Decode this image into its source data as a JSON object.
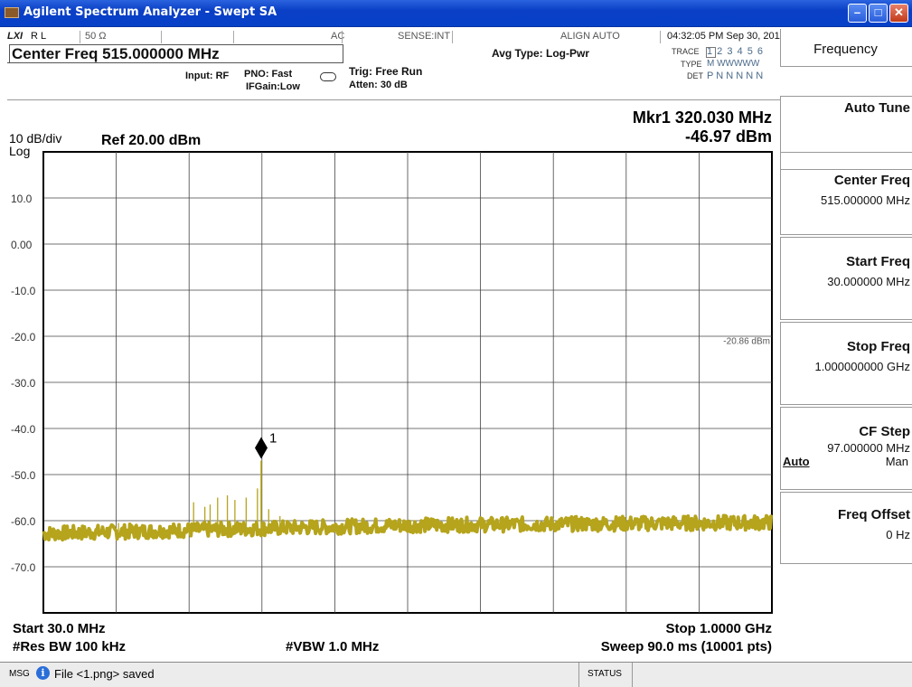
{
  "window": {
    "title": "Agilent Spectrum Analyzer - Swept SA",
    "min_label": "–",
    "max_label": "□",
    "close_label": "✕"
  },
  "header": {
    "lxi": "LXI",
    "rl": "R L",
    "impedance": "50 Ω",
    "coupling": "AC",
    "sense": "SENSE:INT",
    "align": "ALIGN AUTO",
    "timestamp": "04:32:05 PM Sep 30, 2011",
    "center_freq": "Center Freq  515.000000 MHz",
    "input": "Input: RF",
    "pno": "PNO: Fast",
    "ifgain": "IFGain:Low",
    "trig": "Trig: Free Run",
    "atten": "Atten: 30 dB",
    "avg_type": "Avg Type: Log-Pwr",
    "trace_label": "TRACE",
    "trace_vals": "1 2 3 4 5 6",
    "type_label": "TYPE",
    "type_vals": "M WWWWW",
    "det_label": "DET",
    "det_vals": "P N N N N N"
  },
  "plot": {
    "scale": "10 dB/div",
    "log": "Log",
    "ref": "Ref 20.00 dBm",
    "marker_freq": "Mkr1 320.030 MHz",
    "marker_amp": "-46.97 dBm",
    "y_ticks": [
      "10.0",
      "0.00",
      "-10.0",
      "-20.0",
      "-30.0",
      "-40.0",
      "-50.0",
      "-60.0",
      "-70.0"
    ],
    "display_line": "-20.86 dBm",
    "marker_id": "1",
    "start": "Start 30.0 MHz",
    "stop": "Stop 1.0000 GHz",
    "rbw": "#Res BW 100 kHz",
    "vbw": "#VBW 1.0 MHz",
    "sweep": "Sweep  90.0 ms (10001 pts)",
    "trace_color": "#b5a41c"
  },
  "chart_data": {
    "type": "line",
    "title": "",
    "xlabel": "",
    "ylabel": "",
    "xlim": [
      30.0,
      1000.0
    ],
    "x_unit": "MHz",
    "ylim": [
      -80,
      20
    ],
    "y_unit": "dBm",
    "grid": true,
    "noise_floor_dbm": -62.5,
    "display_line_dbm": -20.86,
    "markers": [
      {
        "id": "1",
        "x": 320.03,
        "y": -46.97
      }
    ],
    "series": [
      {
        "name": "",
        "x": [
          30,
          130,
          240,
          280,
          300,
          320.03,
          340,
          360,
          500,
          700,
          1000
        ],
        "y": [
          -62.5,
          -61,
          -55,
          -54,
          -56,
          -46.97,
          -58,
          -60,
          -62,
          -61.5,
          -61.5
        ]
      }
    ]
  },
  "softkeys": [
    {
      "label": "Frequency",
      "value": ""
    },
    {
      "label": "Auto Tune",
      "value": ""
    },
    {
      "label": "Center Freq",
      "value": "515.000000 MHz"
    },
    {
      "label": "Start Freq",
      "value": "30.000000 MHz"
    },
    {
      "label": "Stop Freq",
      "value": "1.000000000 GHz"
    },
    {
      "label": "CF Step",
      "value": "97.000000 MHz",
      "auto": "Auto",
      "man": "Man"
    },
    {
      "label": "Freq Offset",
      "value": "0 Hz"
    }
  ],
  "status": {
    "msg": "MSG",
    "text": "File <1.png> saved",
    "status": "STATUS"
  }
}
